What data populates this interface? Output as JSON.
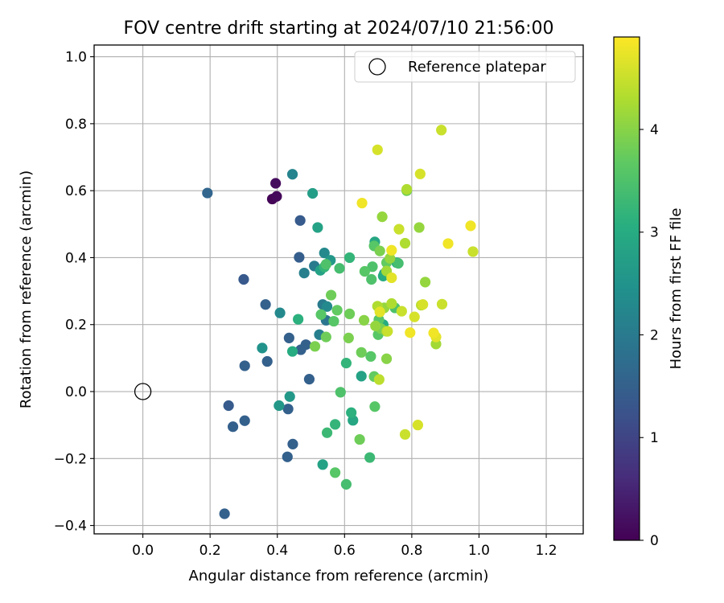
{
  "chart_data": {
    "type": "scatter",
    "title": "FOV centre drift starting at 2024/07/10 21:56:00",
    "xlabel": "Angular distance from reference (arcmin)",
    "ylabel": "Rotation from reference (arcmin)",
    "xlim": [
      -0.145,
      1.31
    ],
    "ylim": [
      -0.425,
      1.035
    ],
    "xticks": [
      0.0,
      0.2,
      0.4,
      0.6,
      0.8,
      1.0,
      1.2
    ],
    "xtick_labels": [
      "0.0",
      "0.2",
      "0.4",
      "0.6",
      "0.8",
      "1.0",
      "1.2"
    ],
    "yticks": [
      -0.4,
      -0.2,
      0.0,
      0.2,
      0.4,
      0.6,
      0.8,
      1.0
    ],
    "ytick_labels": [
      "−0.4",
      "−0.2",
      "0.0",
      "0.2",
      "0.4",
      "0.6",
      "0.8",
      "1.0"
    ],
    "grid": true,
    "legend": {
      "placement": "top-right",
      "entries": [
        "Reference platepar"
      ]
    },
    "reference_point": {
      "label": "Reference platepar",
      "x": 0.0,
      "y": 0.0
    },
    "colorbar": {
      "label": "Hours from first FF file",
      "range": [
        0,
        4.9
      ],
      "ticks": [
        0,
        1,
        2,
        3,
        4
      ],
      "tick_labels": [
        "0",
        "1",
        "2",
        "3",
        "4"
      ],
      "colormap": "viridis"
    },
    "points": [
      {
        "x": 0.385,
        "y": 0.575,
        "h": 0.05
      },
      {
        "x": 0.398,
        "y": 0.583,
        "h": 0.1
      },
      {
        "x": 0.395,
        "y": 0.622,
        "h": 0.15
      },
      {
        "x": 0.192,
        "y": 0.593,
        "h": 1.6
      },
      {
        "x": 0.468,
        "y": 0.511,
        "h": 1.4
      },
      {
        "x": 0.465,
        "y": 0.401,
        "h": 1.45
      },
      {
        "x": 0.3,
        "y": 0.335,
        "h": 1.35
      },
      {
        "x": 0.365,
        "y": 0.26,
        "h": 1.5
      },
      {
        "x": 0.435,
        "y": 0.16,
        "h": 1.5
      },
      {
        "x": 0.47,
        "y": 0.125,
        "h": 1.5
      },
      {
        "x": 0.485,
        "y": 0.14,
        "h": 1.5
      },
      {
        "x": 0.37,
        "y": 0.09,
        "h": 1.5
      },
      {
        "x": 0.303,
        "y": 0.077,
        "h": 1.5
      },
      {
        "x": 0.495,
        "y": 0.037,
        "h": 1.5
      },
      {
        "x": 0.255,
        "y": -0.042,
        "h": 1.4
      },
      {
        "x": 0.268,
        "y": -0.105,
        "h": 1.5
      },
      {
        "x": 0.303,
        "y": -0.087,
        "h": 1.5
      },
      {
        "x": 0.432,
        "y": -0.052,
        "h": 1.5
      },
      {
        "x": 0.446,
        "y": -0.157,
        "h": 1.5
      },
      {
        "x": 0.43,
        "y": -0.195,
        "h": 1.5
      },
      {
        "x": 0.243,
        "y": -0.365,
        "h": 1.5
      },
      {
        "x": 0.445,
        "y": 0.649,
        "h": 2.2
      },
      {
        "x": 0.505,
        "y": 0.592,
        "h": 2.7
      },
      {
        "x": 0.52,
        "y": 0.49,
        "h": 2.8
      },
      {
        "x": 0.408,
        "y": 0.235,
        "h": 2.3
      },
      {
        "x": 0.48,
        "y": 0.354,
        "h": 2.1
      },
      {
        "x": 0.51,
        "y": 0.375,
        "h": 2.0
      },
      {
        "x": 0.54,
        "y": 0.414,
        "h": 2.3
      },
      {
        "x": 0.558,
        "y": 0.392,
        "h": 2.6
      },
      {
        "x": 0.535,
        "y": 0.26,
        "h": 2.0
      },
      {
        "x": 0.545,
        "y": 0.213,
        "h": 1.9
      },
      {
        "x": 0.548,
        "y": 0.254,
        "h": 2.3
      },
      {
        "x": 0.525,
        "y": 0.17,
        "h": 2.1
      },
      {
        "x": 0.355,
        "y": 0.13,
        "h": 2.5
      },
      {
        "x": 0.445,
        "y": 0.12,
        "h": 3.0
      },
      {
        "x": 0.462,
        "y": 0.216,
        "h": 3.1
      },
      {
        "x": 0.405,
        "y": -0.042,
        "h": 2.6
      },
      {
        "x": 0.437,
        "y": -0.015,
        "h": 2.6
      },
      {
        "x": 0.535,
        "y": -0.218,
        "h": 2.8
      },
      {
        "x": 0.528,
        "y": 0.362,
        "h": 2.8
      },
      {
        "x": 0.54,
        "y": 0.372,
        "h": 3.2
      },
      {
        "x": 0.545,
        "y": 0.38,
        "h": 3.5
      },
      {
        "x": 0.585,
        "y": 0.368,
        "h": 3.4
      },
      {
        "x": 0.615,
        "y": 0.4,
        "h": 3.2
      },
      {
        "x": 0.53,
        "y": 0.23,
        "h": 3.6
      },
      {
        "x": 0.545,
        "y": 0.163,
        "h": 3.8
      },
      {
        "x": 0.56,
        "y": 0.288,
        "h": 3.8
      },
      {
        "x": 0.568,
        "y": 0.21,
        "h": 3.6
      },
      {
        "x": 0.578,
        "y": 0.243,
        "h": 3.7
      },
      {
        "x": 0.512,
        "y": 0.135,
        "h": 3.9
      },
      {
        "x": 0.605,
        "y": 0.085,
        "h": 3.2
      },
      {
        "x": 0.588,
        "y": -0.002,
        "h": 3.5
      },
      {
        "x": 0.572,
        "y": -0.098,
        "h": 3.2
      },
      {
        "x": 0.548,
        "y": -0.123,
        "h": 3.3
      },
      {
        "x": 0.572,
        "y": -0.242,
        "h": 3.6
      },
      {
        "x": 0.605,
        "y": -0.277,
        "h": 3.4
      },
      {
        "x": 0.62,
        "y": -0.063,
        "h": 3.1
      },
      {
        "x": 0.625,
        "y": -0.086,
        "h": 2.9
      },
      {
        "x": 0.645,
        "y": -0.143,
        "h": 3.8
      },
      {
        "x": 0.675,
        "y": -0.197,
        "h": 3.3
      },
      {
        "x": 0.65,
        "y": 0.046,
        "h": 2.8
      },
      {
        "x": 0.688,
        "y": 0.045,
        "h": 3.7
      },
      {
        "x": 0.703,
        "y": 0.036,
        "h": 4.4
      },
      {
        "x": 0.69,
        "y": -0.045,
        "h": 3.6
      },
      {
        "x": 0.612,
        "y": 0.16,
        "h": 3.9
      },
      {
        "x": 0.615,
        "y": 0.232,
        "h": 3.8
      },
      {
        "x": 0.65,
        "y": 0.117,
        "h": 3.8
      },
      {
        "x": 0.678,
        "y": 0.105,
        "h": 3.6
      },
      {
        "x": 0.658,
        "y": 0.213,
        "h": 4.0
      },
      {
        "x": 0.66,
        "y": 0.359,
        "h": 3.6
      },
      {
        "x": 0.68,
        "y": 0.335,
        "h": 3.5
      },
      {
        "x": 0.683,
        "y": 0.373,
        "h": 3.5
      },
      {
        "x": 0.688,
        "y": 0.435,
        "h": 3.6
      },
      {
        "x": 0.69,
        "y": 0.447,
        "h": 2.9
      },
      {
        "x": 0.705,
        "y": 0.42,
        "h": 3.9
      },
      {
        "x": 0.712,
        "y": 0.522,
        "h": 4.1
      },
      {
        "x": 0.715,
        "y": 0.345,
        "h": 3.0
      },
      {
        "x": 0.718,
        "y": 0.352,
        "h": 2.7
      },
      {
        "x": 0.725,
        "y": 0.385,
        "h": 3.7
      },
      {
        "x": 0.725,
        "y": 0.36,
        "h": 4.2
      },
      {
        "x": 0.735,
        "y": 0.398,
        "h": 4.1
      },
      {
        "x": 0.74,
        "y": 0.34,
        "h": 4.7
      },
      {
        "x": 0.74,
        "y": 0.422,
        "h": 4.8
      },
      {
        "x": 0.755,
        "y": 0.385,
        "h": 3.1
      },
      {
        "x": 0.76,
        "y": 0.383,
        "h": 3.4
      },
      {
        "x": 0.762,
        "y": 0.485,
        "h": 4.5
      },
      {
        "x": 0.78,
        "y": 0.443,
        "h": 4.3
      },
      {
        "x": 0.785,
        "y": 0.6,
        "h": 3.8
      },
      {
        "x": 0.785,
        "y": 0.604,
        "h": 4.3
      },
      {
        "x": 0.822,
        "y": 0.49,
        "h": 4.1
      },
      {
        "x": 0.825,
        "y": 0.65,
        "h": 4.6
      },
      {
        "x": 0.698,
        "y": 0.722,
        "h": 4.6
      },
      {
        "x": 0.652,
        "y": 0.563,
        "h": 4.8
      },
      {
        "x": 0.698,
        "y": 0.255,
        "h": 4.3
      },
      {
        "x": 0.705,
        "y": 0.238,
        "h": 4.7
      },
      {
        "x": 0.718,
        "y": 0.25,
        "h": 4.1
      },
      {
        "x": 0.74,
        "y": 0.263,
        "h": 4.3
      },
      {
        "x": 0.75,
        "y": 0.25,
        "h": 3.5
      },
      {
        "x": 0.702,
        "y": 0.215,
        "h": 3.6
      },
      {
        "x": 0.708,
        "y": 0.188,
        "h": 3.9
      },
      {
        "x": 0.7,
        "y": 0.17,
        "h": 3.6
      },
      {
        "x": 0.715,
        "y": 0.2,
        "h": 3.0
      },
      {
        "x": 0.725,
        "y": 0.18,
        "h": 4.2
      },
      {
        "x": 0.728,
        "y": 0.18,
        "h": 4.5
      },
      {
        "x": 0.725,
        "y": 0.098,
        "h": 4.0
      },
      {
        "x": 0.77,
        "y": 0.24,
        "h": 4.5
      },
      {
        "x": 0.795,
        "y": 0.176,
        "h": 4.8
      },
      {
        "x": 0.808,
        "y": 0.223,
        "h": 4.6
      },
      {
        "x": 0.828,
        "y": 0.258,
        "h": 4.4
      },
      {
        "x": 0.84,
        "y": 0.327,
        "h": 4.1
      },
      {
        "x": 0.865,
        "y": 0.175,
        "h": 4.8
      },
      {
        "x": 0.872,
        "y": 0.163,
        "h": 4.7
      },
      {
        "x": 0.872,
        "y": 0.142,
        "h": 4.2
      },
      {
        "x": 0.89,
        "y": 0.261,
        "h": 4.5
      },
      {
        "x": 0.78,
        "y": -0.128,
        "h": 4.5
      },
      {
        "x": 0.818,
        "y": -0.1,
        "h": 4.6
      },
      {
        "x": 0.888,
        "y": 0.781,
        "h": 4.5
      },
      {
        "x": 0.908,
        "y": 0.442,
        "h": 4.8
      },
      {
        "x": 0.975,
        "y": 0.495,
        "h": 4.8
      },
      {
        "x": 0.982,
        "y": 0.418,
        "h": 4.5
      },
      {
        "x": 0.833,
        "y": 0.26,
        "h": 4.6
      },
      {
        "x": 0.692,
        "y": 0.196,
        "h": 4.1
      }
    ]
  }
}
